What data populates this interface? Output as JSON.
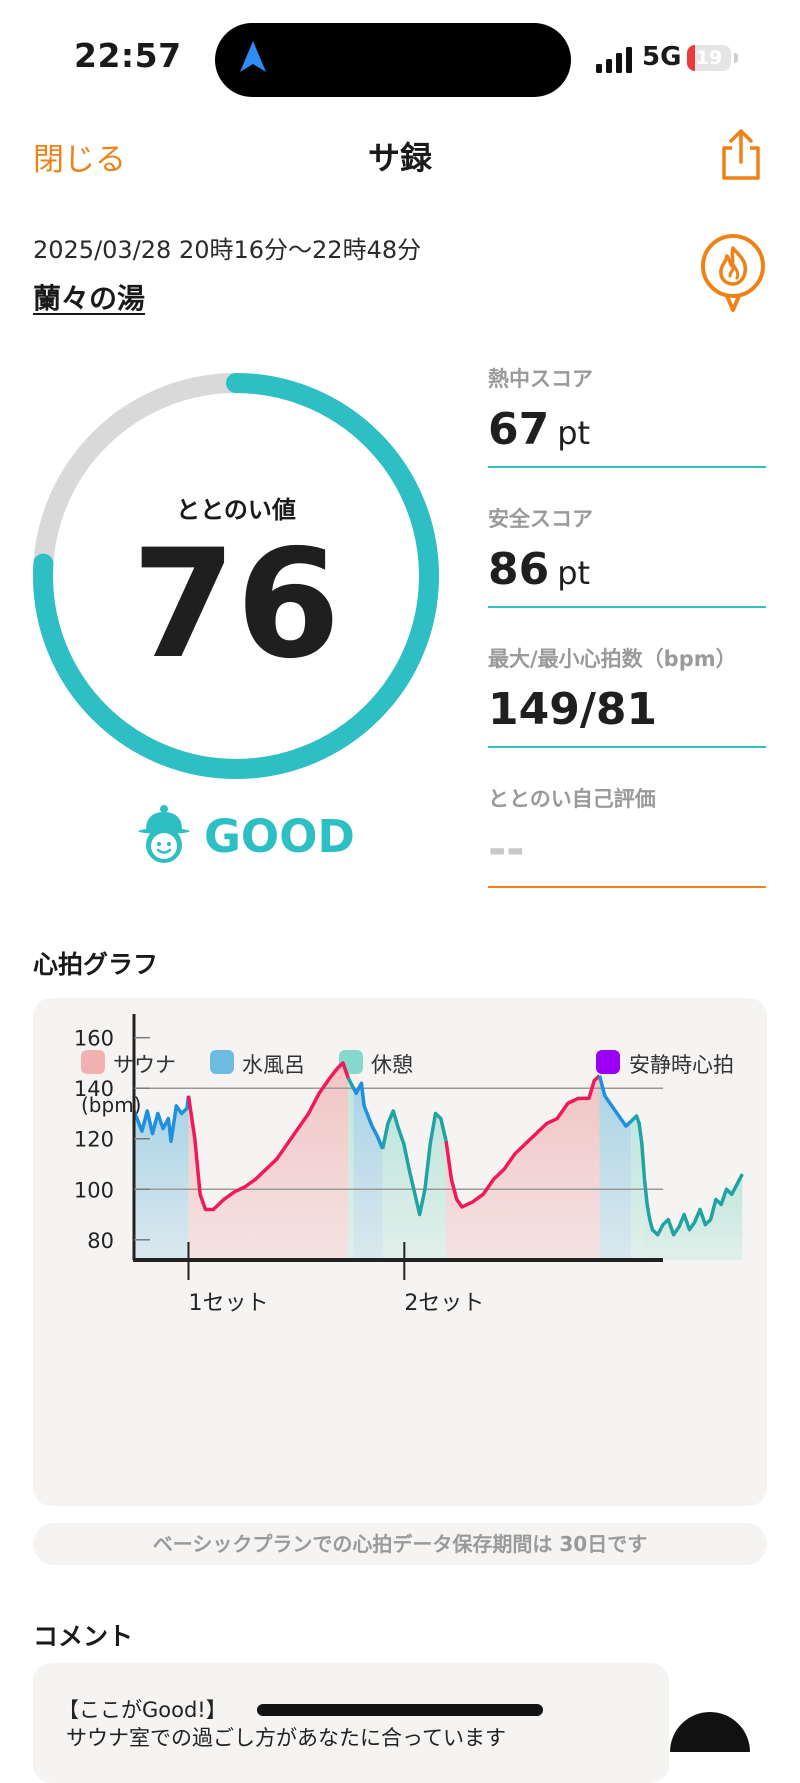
{
  "status_bar": {
    "time": "22:57",
    "network": "5G",
    "battery": "19",
    "battery_level": 0.19
  },
  "nav": {
    "close_label": "閉じる",
    "title": "サ録",
    "share_icon": "share-icon"
  },
  "session": {
    "datetime": "2025/03/28 20時16分〜22時48分",
    "facility": "蘭々の湯",
    "badge_icon": "sauna-flame-icon"
  },
  "totonoi": {
    "label": "ととのい値",
    "value": "76",
    "score": 76,
    "max": 100,
    "rating": "GOOD",
    "rating_icon": "mascot-icon"
  },
  "stats": [
    {
      "label": "熱中スコア",
      "value": "67",
      "unit": "pt"
    },
    {
      "label": "安全スコア",
      "value": "86",
      "unit": "pt"
    },
    {
      "label": "最大/最小心拍数（bpm）",
      "value": "149/81",
      "unit": ""
    },
    {
      "label": "ととのい自己評価",
      "value": "--",
      "unit": ""
    }
  ],
  "colors": {
    "accent": "#ef8217",
    "teal": "#2ebfc4",
    "heart_line": "#f0195a",
    "cold_line": "#1f8fe0",
    "rest_line": "#1fa3a3"
  },
  "graph": {
    "heading": "心拍グラフ",
    "legend": [
      {
        "label": "サウナ",
        "color": "#f2b0b0"
      },
      {
        "label": "水風呂",
        "color": "#6dbbe0"
      },
      {
        "label": "休憩",
        "color": "#86d8cb"
      },
      {
        "label": "安静時心拍",
        "color": "#9b00f5"
      }
    ],
    "y_unit": "(bpm)",
    "notice": "ベーシックプランでの心拍データ保存期間は 30日です"
  },
  "chart_data": {
    "type": "area",
    "yunit": "(bpm)",
    "ylim": [
      72,
      167
    ],
    "yticks": [
      80,
      100,
      120,
      140,
      160
    ],
    "xlim": [
      0,
      100
    ],
    "x_tick_labels": [
      {
        "x": 10.3,
        "label": "1セット"
      },
      {
        "x": 51.1,
        "label": "2セット"
      }
    ],
    "gridlines": [
      100,
      140
    ],
    "segments": [
      {
        "phase": "水風呂",
        "points": [
          [
            0,
            131
          ],
          [
            1.5,
            123
          ],
          [
            2.5,
            131
          ],
          [
            3.5,
            122
          ],
          [
            4.5,
            130
          ],
          [
            5.5,
            124
          ],
          [
            6.5,
            128
          ],
          [
            7,
            119
          ],
          [
            8,
            133
          ],
          [
            9,
            130
          ],
          [
            10,
            132
          ],
          [
            10.3,
            137
          ]
        ]
      },
      {
        "phase": "サウナ",
        "points": [
          [
            10.3,
            137
          ],
          [
            11.5,
            120
          ],
          [
            12.5,
            98
          ],
          [
            13.5,
            92
          ],
          [
            15,
            92
          ],
          [
            17,
            96
          ],
          [
            19,
            99
          ],
          [
            21,
            101
          ],
          [
            23,
            104
          ],
          [
            25,
            108
          ],
          [
            27,
            112
          ],
          [
            29,
            118
          ],
          [
            31,
            124
          ],
          [
            33,
            130
          ],
          [
            35,
            138
          ],
          [
            37,
            144
          ],
          [
            38.5,
            148
          ],
          [
            39.5,
            150
          ],
          [
            40.5,
            144
          ]
        ]
      },
      {
        "phase": "休憩",
        "points": [
          [
            40.5,
            144
          ],
          [
            41.5,
            140
          ]
        ]
      },
      {
        "phase": "水風呂",
        "points": [
          [
            41.5,
            140
          ],
          [
            42,
            138
          ],
          [
            43,
            142
          ],
          [
            43.5,
            133
          ],
          [
            45,
            125
          ],
          [
            46,
            121
          ],
          [
            47,
            116
          ]
        ]
      },
      {
        "phase": "休憩",
        "points": [
          [
            47,
            116
          ],
          [
            48,
            126
          ],
          [
            49,
            131
          ],
          [
            50,
            124
          ],
          [
            51,
            118
          ],
          [
            52,
            108
          ],
          [
            53,
            99
          ],
          [
            54,
            90
          ],
          [
            55,
            100
          ],
          [
            56,
            118
          ],
          [
            57,
            130
          ],
          [
            58,
            128
          ],
          [
            59,
            119
          ]
        ]
      },
      {
        "phase": "サウナ",
        "points": [
          [
            59,
            119
          ],
          [
            60,
            104
          ],
          [
            61,
            96
          ],
          [
            62,
            93
          ],
          [
            64,
            95
          ],
          [
            66,
            98
          ],
          [
            68,
            104
          ],
          [
            70,
            108
          ],
          [
            72,
            114
          ],
          [
            74,
            118
          ],
          [
            76,
            122
          ],
          [
            78,
            126
          ],
          [
            80,
            128
          ],
          [
            82,
            134
          ],
          [
            84,
            136
          ],
          [
            86,
            136
          ],
          [
            87,
            143
          ],
          [
            88,
            145
          ]
        ]
      },
      {
        "phase": "水風呂",
        "points": [
          [
            88,
            145
          ],
          [
            89,
            137
          ],
          [
            90,
            134
          ],
          [
            91,
            131
          ],
          [
            92,
            128
          ],
          [
            93,
            125
          ],
          [
            94,
            127
          ]
        ]
      },
      {
        "phase": "休憩",
        "points": [
          [
            94,
            127
          ],
          [
            95,
            129
          ],
          [
            95.5,
            126
          ],
          [
            96,
            118
          ],
          [
            96.5,
            104
          ]
        ]
      },
      {
        "phase": "休憩",
        "points": [
          [
            96.5,
            104
          ],
          [
            97,
            94
          ],
          [
            97.5,
            88
          ],
          [
            98,
            84
          ],
          [
            99,
            82
          ],
          [
            100,
            86
          ],
          [
            101,
            88
          ],
          [
            102,
            82
          ],
          [
            103,
            85
          ],
          [
            104,
            90
          ],
          [
            105,
            84
          ],
          [
            106,
            87
          ],
          [
            107,
            92
          ],
          [
            108,
            86
          ],
          [
            109,
            88
          ],
          [
            110,
            96
          ],
          [
            111,
            94
          ],
          [
            112,
            100
          ],
          [
            113,
            98
          ],
          [
            114,
            102
          ],
          [
            115,
            106
          ]
        ]
      }
    ]
  },
  "comment": {
    "heading": "コメント",
    "title": "【ここがGood!】",
    "body": "サウナ室での過ごし方があなたに合っています"
  }
}
